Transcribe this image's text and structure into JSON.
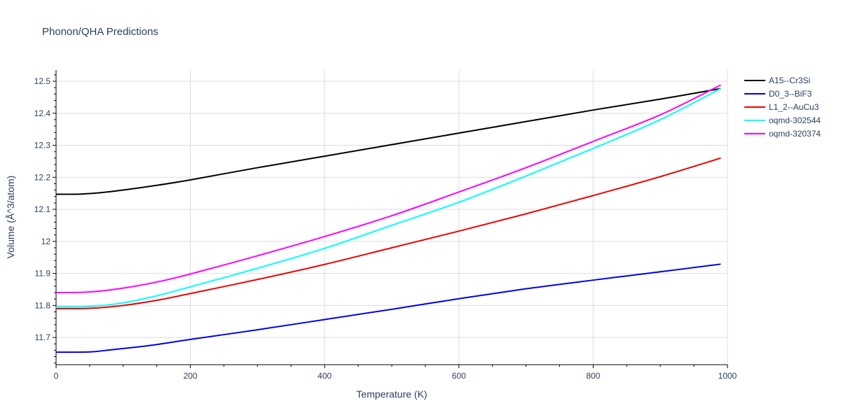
{
  "chart_data": {
    "type": "line",
    "title": "Phonon/QHA Predictions",
    "xlabel": "Temperature (K)",
    "ylabel": "Volume (Å^3/atom)",
    "xlim": [
      0,
      1000
    ],
    "ylim": [
      11.615,
      12.535
    ],
    "xticks": [
      0,
      200,
      400,
      600,
      800,
      1000
    ],
    "xtick_labels": [
      "0",
      "200",
      "400",
      "600",
      "800",
      "1000"
    ],
    "yticks": [
      11.7,
      11.8,
      11.9,
      12.0,
      12.1,
      12.2,
      12.3,
      12.4,
      12.5
    ],
    "ytick_labels": [
      "11.7",
      "11.8",
      "11.9",
      "12",
      "12.1",
      "12.2",
      "12.3",
      "12.4",
      "12.5"
    ],
    "grid": true,
    "legend_position": "top-right",
    "series": [
      {
        "name": "A15--Cr3Si",
        "color": "#000000",
        "x": [
          0,
          40,
          80,
          150,
          200,
          300,
          400,
          500,
          600,
          700,
          800,
          900,
          990
        ],
        "y": [
          12.147,
          12.148,
          12.155,
          12.175,
          12.192,
          12.23,
          12.266,
          12.302,
          12.338,
          12.374,
          12.41,
          12.444,
          12.477
        ]
      },
      {
        "name": "D0_3--BiF3",
        "color": "#0000ee",
        "x": [
          0,
          50,
          80,
          140,
          200,
          300,
          400,
          500,
          600,
          700,
          800,
          900,
          990
        ],
        "y": [
          11.654,
          11.655,
          11.661,
          11.675,
          11.694,
          11.724,
          11.756,
          11.788,
          11.821,
          11.852,
          11.879,
          11.905,
          11.929
        ]
      },
      {
        "name": "L1_2--AuCu3",
        "color": "#ee0000",
        "x": [
          0,
          50,
          100,
          150,
          200,
          300,
          400,
          500,
          600,
          700,
          800,
          900,
          990
        ],
        "y": [
          11.79,
          11.791,
          11.8,
          11.816,
          11.837,
          11.881,
          11.928,
          11.98,
          12.032,
          12.086,
          12.143,
          12.202,
          12.26
        ]
      },
      {
        "name": "oqmd-302544",
        "color": "#00ffff",
        "x": [
          0,
          50,
          100,
          150,
          200,
          300,
          400,
          500,
          600,
          700,
          800,
          900,
          990
        ],
        "y": [
          11.796,
          11.797,
          11.808,
          11.83,
          11.858,
          11.916,
          11.978,
          12.05,
          12.122,
          12.204,
          12.29,
          12.38,
          12.477
        ]
      },
      {
        "name": "oqmd-320374",
        "color": "#ff00ff",
        "x": [
          0,
          50,
          100,
          150,
          200,
          300,
          400,
          500,
          600,
          700,
          800,
          900,
          990
        ],
        "y": [
          11.84,
          11.842,
          11.854,
          11.873,
          11.898,
          11.955,
          12.015,
          12.08,
          12.154,
          12.23,
          12.312,
          12.395,
          12.488
        ]
      }
    ]
  }
}
